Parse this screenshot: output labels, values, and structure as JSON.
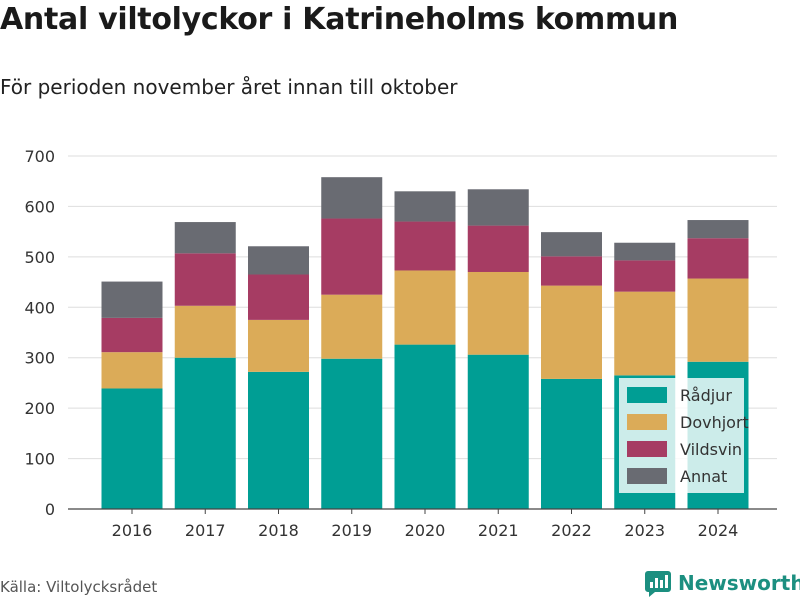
{
  "title": "Antal viltolyckor i Katrineholms kommun",
  "subtitle": "För perioden november året innan till oktober",
  "source": "Källa: Viltolycksrådet",
  "brand": {
    "name": "Newsworthy",
    "icon": "newsworthy-logo-icon",
    "color": "#1c8f80"
  },
  "chart_data": {
    "type": "bar",
    "stacked": true,
    "categories": [
      "2016",
      "2017",
      "2018",
      "2019",
      "2020",
      "2021",
      "2022",
      "2023",
      "2024"
    ],
    "series": [
      {
        "name": "Rådjur",
        "color": "#009e94",
        "values": [
          239,
          300,
          272,
          298,
          326,
          306,
          258,
          265,
          292
        ]
      },
      {
        "name": "Dovhjort",
        "color": "#dbab58",
        "values": [
          72,
          103,
          103,
          127,
          147,
          164,
          185,
          166,
          165
        ]
      },
      {
        "name": "Vildsvin",
        "color": "#a63c63",
        "values": [
          68,
          104,
          90,
          151,
          97,
          92,
          58,
          62,
          80
        ]
      },
      {
        "name": "Annat",
        "color": "#696b72",
        "values": [
          72,
          62,
          56,
          82,
          60,
          72,
          48,
          35,
          36
        ]
      }
    ],
    "ylim": [
      0,
      700
    ],
    "yticks": [
      0,
      100,
      200,
      300,
      400,
      500,
      600,
      700
    ],
    "grid": true,
    "legend_position": "bottom-right"
  }
}
